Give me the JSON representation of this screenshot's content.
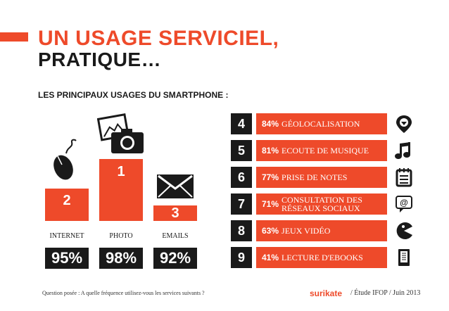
{
  "header": {
    "title_line1": "UN USAGE SERVICIEL,",
    "title_line2": "PRATIQUE…",
    "subtitle": "LES PRINCIPAUX USAGES DU SMARTPHONE :"
  },
  "colors": {
    "accent": "#ee4a2a",
    "dark": "#1a1a1a"
  },
  "chart_data": [
    {
      "type": "bar",
      "categories": [
        "INTERNET",
        "PHOTO",
        "EMAILS"
      ],
      "ranks": [
        "2",
        "1",
        "3"
      ],
      "values": [
        95,
        98,
        92
      ],
      "value_labels": [
        "95%",
        "98%",
        "92%"
      ],
      "icons": [
        "mouse-icon",
        "camera-photo-icon",
        "envelope-icon"
      ],
      "bar_style": "ranked podium"
    },
    {
      "type": "table",
      "rows": [
        {
          "rank": "4",
          "value": 84,
          "pct": "84%",
          "label": "GÉOLOCALISATION",
          "icon": "location-pin-icon"
        },
        {
          "rank": "5",
          "value": 81,
          "pct": "81%",
          "label": "ECOUTE DE MUSIQUE",
          "icon": "music-note-icon"
        },
        {
          "rank": "6",
          "value": 77,
          "pct": "77%",
          "label": "PRISE DE NOTES",
          "icon": "notepad-icon"
        },
        {
          "rank": "7",
          "value": 71,
          "pct": "71%",
          "label": "CONSULTATION DES RÉSEAUX SOCIAUX",
          "icon": "at-sign-speech-icon"
        },
        {
          "rank": "8",
          "value": 63,
          "pct": "63%",
          "label": "JEUX VIDÉO",
          "icon": "pacman-icon"
        },
        {
          "rank": "9",
          "value": 41,
          "pct": "41%",
          "label": "LECTURE D'EBOOKS",
          "icon": "ereader-icon"
        }
      ]
    }
  ],
  "footer": {
    "question": "Question posée : A quelle fréquence utilisez-vous les services suivants ?",
    "brand": "surikate",
    "meta": "/ Étude IFOP / Juin 2013"
  }
}
